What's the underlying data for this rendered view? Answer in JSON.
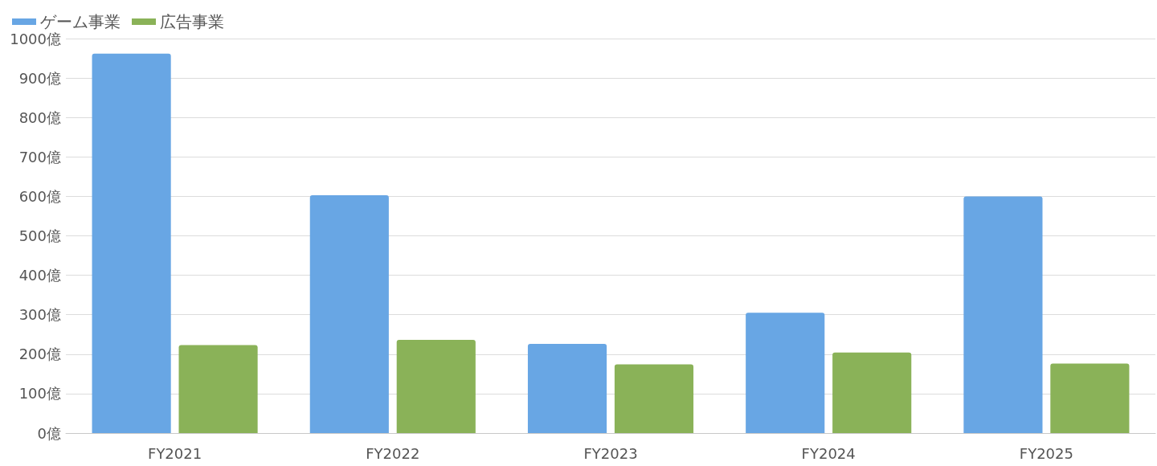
{
  "chart_data": {
    "type": "bar",
    "categories": [
      "FY2021",
      "FY2022",
      "FY2023",
      "FY2024",
      "FY2025"
    ],
    "series": [
      {
        "name": "ゲーム事業",
        "color": "#68a6e4",
        "values": [
          962,
          603,
          226,
          305,
          600
        ]
      },
      {
        "name": "広告事業",
        "color": "#8ab258",
        "values": [
          223,
          236,
          174,
          204,
          176
        ]
      }
    ],
    "ylim": [
      0,
      1000
    ],
    "yticks": [
      {
        "value": 0,
        "label": "0億"
      },
      {
        "value": 100,
        "label": "100億"
      },
      {
        "value": 200,
        "label": "200億"
      },
      {
        "value": 300,
        "label": "300億"
      },
      {
        "value": 400,
        "label": "400億"
      },
      {
        "value": 500,
        "label": "500億"
      },
      {
        "value": 600,
        "label": "600億"
      },
      {
        "value": 700,
        "label": "700億"
      },
      {
        "value": 800,
        "label": "800億"
      },
      {
        "value": 900,
        "label": "900億"
      },
      {
        "value": 1000,
        "label": "1000億"
      }
    ],
    "grid": "y",
    "legend": "top left"
  }
}
